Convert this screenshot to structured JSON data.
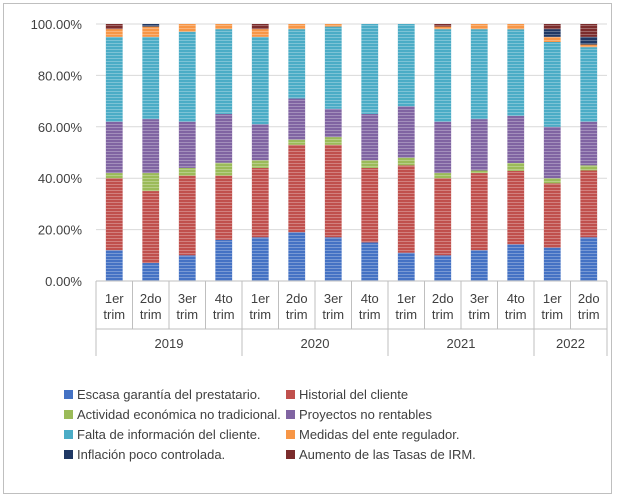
{
  "chart_data": {
    "type": "bar",
    "stacked": true,
    "percent": true,
    "years": [
      {
        "label": "2019",
        "quarters": [
          "1er trim",
          "2do trim",
          "3er trim",
          "4to trim"
        ]
      },
      {
        "label": "2020",
        "quarters": [
          "1er trim",
          "2do trim",
          "3er trim",
          "4to trim"
        ]
      },
      {
        "label": "2021",
        "quarters": [
          "1er trim",
          "2do trim",
          "3er trim",
          "4to trim"
        ]
      },
      {
        "label": "2022",
        "quarters": [
          "1er trim",
          "2do trim"
        ]
      }
    ],
    "categories": [
      "1er trim",
      "2do trim",
      "3er trim",
      "4to trim",
      "1er trim",
      "2do trim",
      "3er trim",
      "4to trim",
      "1er trim",
      "2do trim",
      "3er trim",
      "4to trim",
      "1er trim",
      "2do trim"
    ],
    "ylim": [
      0,
      100
    ],
    "yticks": [
      "0.00%",
      "20.00%",
      "40.00%",
      "60.00%",
      "80.00%",
      "100.00%"
    ],
    "legend_position": "bottom",
    "series": [
      {
        "name": "Escasa garantía del prestatario.",
        "color": "#4472C4",
        "values": [
          12,
          7,
          10,
          16,
          17,
          19,
          17,
          15,
          11,
          10,
          12,
          14,
          13,
          17
        ]
      },
      {
        "name": "Historial del cliente",
        "color": "#C0504D",
        "values": [
          28,
          28,
          31,
          25,
          27,
          34,
          36,
          29,
          34,
          30,
          30,
          28,
          25,
          26
        ]
      },
      {
        "name": "Actividad económica no tradicional.",
        "color": "#9BBB59",
        "values": [
          2,
          7,
          3,
          5,
          3,
          2,
          3,
          3,
          3,
          2,
          1,
          3,
          2,
          2
        ]
      },
      {
        "name": "Proyectos no rentables",
        "color": "#8064A2",
        "values": [
          20,
          21,
          18,
          19,
          14,
          16,
          11,
          18,
          20,
          20,
          20,
          18,
          20,
          17
        ]
      },
      {
        "name": "Falta de información del cliente.",
        "color": "#4BACC6",
        "values": [
          33,
          32,
          35,
          33,
          34,
          27,
          32,
          35,
          32,
          36,
          35,
          33,
          33,
          29
        ]
      },
      {
        "name": "Medidas del ente regulador.",
        "color": "#F79646",
        "values": [
          3,
          4,
          3,
          2,
          3,
          2,
          1,
          0,
          0,
          1,
          2,
          2,
          2,
          1
        ]
      },
      {
        "name": "Inflación poco controlada.",
        "color": "#1F3864",
        "values": [
          0,
          1,
          0,
          0,
          0,
          0,
          0,
          0,
          0,
          0,
          0,
          0,
          3,
          3
        ]
      },
      {
        "name": "Aumento de las Tasas de IRM.",
        "color": "#7B2C2C",
        "values": [
          2,
          0,
          0,
          0,
          2,
          0,
          0,
          0,
          0,
          1,
          0,
          0,
          2,
          5
        ]
      }
    ]
  }
}
